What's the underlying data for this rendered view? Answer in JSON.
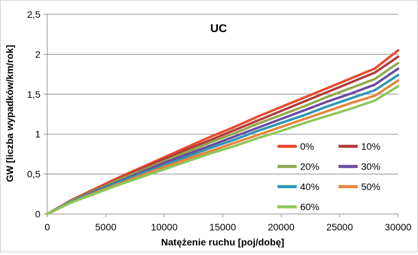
{
  "chart_data": {
    "type": "line",
    "title": "UC",
    "xlabel": "Natężenie ruchu [poj/dobę]",
    "ylabel": "GW [liczba wypadków/km/rok]",
    "xlim": [
      0,
      30000
    ],
    "ylim": [
      0,
      2.5
    ],
    "x_ticks": [
      0,
      5000,
      10000,
      15000,
      20000,
      25000,
      30000
    ],
    "x_tick_labels": [
      "0",
      "5000",
      "10000",
      "15000",
      "20000",
      "25000",
      "30000"
    ],
    "y_ticks": [
      0,
      0.5,
      1,
      1.5,
      2,
      2.5
    ],
    "y_tick_labels": [
      "0",
      "0,5",
      "1",
      "1,5",
      "2",
      "2,5"
    ],
    "grid": "horizontal",
    "legend_position": "bottom-right",
    "x": [
      0,
      2000,
      4000,
      6000,
      8000,
      10000,
      12000,
      14000,
      16000,
      18000,
      20000,
      22000,
      24000,
      26000,
      28000,
      30000
    ],
    "series": [
      {
        "name": "0%",
        "color": "#e8492b",
        "values": [
          0,
          0.17,
          0.31,
          0.45,
          0.58,
          0.71,
          0.84,
          0.97,
          1.09,
          1.22,
          1.34,
          1.46,
          1.58,
          1.7,
          1.82,
          2.05
        ]
      },
      {
        "name": "10%",
        "color": "#b23c3c",
        "values": [
          0,
          0.16,
          0.3,
          0.43,
          0.56,
          0.69,
          0.81,
          0.93,
          1.05,
          1.17,
          1.29,
          1.41,
          1.53,
          1.65,
          1.77,
          1.97
        ]
      },
      {
        "name": "20%",
        "color": "#8fa84a",
        "values": [
          0,
          0.16,
          0.29,
          0.42,
          0.54,
          0.66,
          0.78,
          0.9,
          1.01,
          1.13,
          1.24,
          1.35,
          1.47,
          1.58,
          1.69,
          1.89
        ]
      },
      {
        "name": "30%",
        "color": "#6a4aa0",
        "values": [
          0,
          0.15,
          0.28,
          0.4,
          0.52,
          0.64,
          0.75,
          0.86,
          0.97,
          1.08,
          1.19,
          1.3,
          1.41,
          1.51,
          1.62,
          1.82
        ]
      },
      {
        "name": "40%",
        "color": "#2a96b4",
        "values": [
          0,
          0.15,
          0.27,
          0.39,
          0.5,
          0.61,
          0.72,
          0.83,
          0.93,
          1.04,
          1.14,
          1.24,
          1.35,
          1.45,
          1.55,
          1.74
        ]
      },
      {
        "name": "50%",
        "color": "#e8843a",
        "values": [
          0,
          0.14,
          0.26,
          0.37,
          0.48,
          0.59,
          0.69,
          0.79,
          0.89,
          0.99,
          1.09,
          1.19,
          1.29,
          1.39,
          1.48,
          1.67
        ]
      },
      {
        "name": "60%",
        "color": "#8dc65a",
        "values": [
          0,
          0.14,
          0.25,
          0.36,
          0.46,
          0.56,
          0.66,
          0.76,
          0.85,
          0.95,
          1.04,
          1.14,
          1.23,
          1.32,
          1.42,
          1.6
        ]
      }
    ]
  }
}
